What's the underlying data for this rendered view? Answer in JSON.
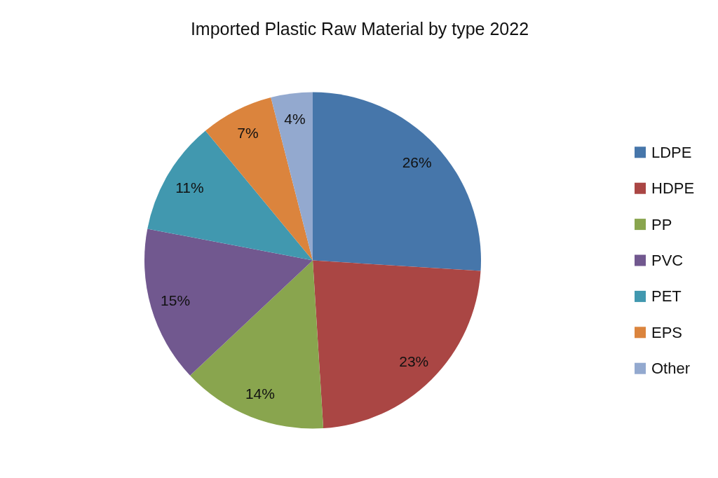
{
  "chart_data": {
    "type": "pie",
    "title": "Imported Plastic Raw Material by type 2022",
    "categories": [
      "LDPE",
      "HDPE",
      "PP",
      "PVC",
      "PET",
      "EPS",
      "Other"
    ],
    "values": [
      26,
      23,
      14,
      15,
      11,
      7,
      4
    ],
    "colors": [
      "#4676aa",
      "#aa4644",
      "#89a54e",
      "#71588f",
      "#4198af",
      "#db843d",
      "#93a9cf"
    ],
    "value_labels": [
      "26%",
      "23%",
      "14%",
      "15%",
      "11%",
      "7%",
      "4%"
    ],
    "legend": "right"
  }
}
